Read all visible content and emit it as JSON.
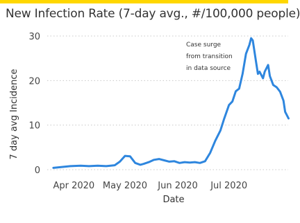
{
  "colors": {
    "accent": "#ffd700",
    "series": "#2e86de"
  },
  "chart_data": {
    "type": "line",
    "title": "New Infection Rate (7-day avg., #/100,000 people)",
    "xlabel": "Date",
    "ylabel": "7 day avg Incidence",
    "ylim": [
      0,
      30
    ],
    "yticks": [
      0,
      10,
      20,
      30
    ],
    "xticks": [
      {
        "date": "2020-04-01",
        "label": "Apr 2020"
      },
      {
        "date": "2020-05-01",
        "label": "May 2020"
      },
      {
        "date": "2020-06-01",
        "label": "Jun 2020"
      },
      {
        "date": "2020-07-01",
        "label": "Jul 2020"
      }
    ],
    "grid": true,
    "annotation": {
      "lines": [
        "Case surge",
        "from transition",
        "in data source"
      ]
    },
    "series": [
      {
        "x": [
          "2020-03-20",
          "2020-03-25",
          "2020-03-30",
          "2020-04-05",
          "2020-04-10",
          "2020-04-15",
          "2020-04-20",
          "2020-04-25",
          "2020-04-28",
          "2020-05-01",
          "2020-05-04",
          "2020-05-07",
          "2020-05-10",
          "2020-05-12",
          "2020-05-15",
          "2020-05-18",
          "2020-05-21",
          "2020-05-24",
          "2020-05-27",
          "2020-05-30",
          "2020-06-02",
          "2020-06-05",
          "2020-06-08",
          "2020-06-11",
          "2020-06-14",
          "2020-06-17",
          "2020-06-20",
          "2020-06-23",
          "2020-06-26",
          "2020-06-28",
          "2020-07-01",
          "2020-07-03",
          "2020-07-05",
          "2020-07-07",
          "2020-07-09",
          "2020-07-11",
          "2020-07-13",
          "2020-07-14",
          "2020-07-15",
          "2020-07-17",
          "2020-07-18",
          "2020-07-19",
          "2020-07-21",
          "2020-07-22",
          "2020-07-24",
          "2020-07-25",
          "2020-07-27",
          "2020-07-29",
          "2020-07-31",
          "2020-08-02",
          "2020-08-03",
          "2020-08-05"
        ],
        "values": [
          0.4,
          0.6,
          0.8,
          0.9,
          0.8,
          0.9,
          0.8,
          1.0,
          1.8,
          3.1,
          3.0,
          1.5,
          1.1,
          1.3,
          1.7,
          2.2,
          2.4,
          2.1,
          1.8,
          1.9,
          1.5,
          1.7,
          1.6,
          1.7,
          1.5,
          1.9,
          3.8,
          6.5,
          8.8,
          11.2,
          14.5,
          15.3,
          17.6,
          18.2,
          21.5,
          26.0,
          28.0,
          29.5,
          29.0,
          24.0,
          21.5,
          22.0,
          20.5,
          22.0,
          23.5,
          21.0,
          19.0,
          18.5,
          17.5,
          15.5,
          13.0,
          11.5
        ]
      }
    ]
  }
}
